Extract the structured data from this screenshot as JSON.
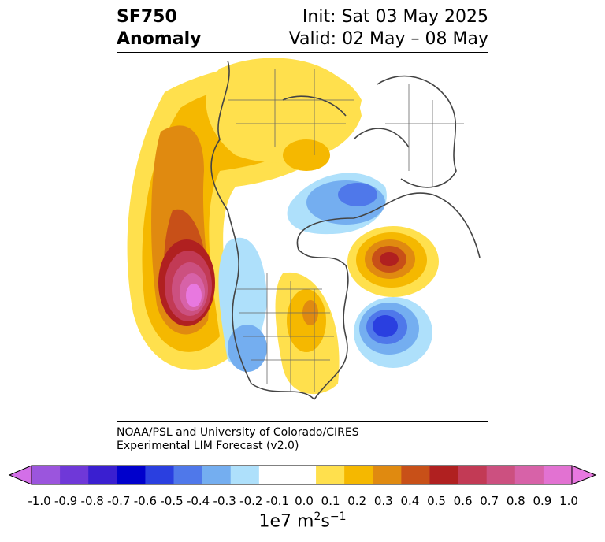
{
  "header": {
    "title_line1": "SF750",
    "title_line2": "Anomaly",
    "init": "Init: Sat 03 May 2025",
    "valid": "Valid: 02 May – 08 May"
  },
  "credit": {
    "line1": "NOAA/PSL and University of Colorado/CIRES",
    "line2": "Experimental LIM Forecast (v2.0)"
  },
  "colorbar": {
    "ticks": [
      "-1.0",
      "-0.9",
      "-0.8",
      "-0.7",
      "-0.6",
      "-0.5",
      "-0.4",
      "-0.3",
      "-0.2",
      "-0.1",
      "0.0",
      "0.1",
      "0.2",
      "0.3",
      "0.4",
      "0.5",
      "0.6",
      "0.7",
      "0.8",
      "0.9",
      "1.0"
    ],
    "colors": [
      "#9b55dd",
      "#6f38d8",
      "#3a1fd0",
      "#0000cc",
      "#2a3fe0",
      "#4f78ea",
      "#74aef0",
      "#aee0fb",
      "#ffffff",
      "#ffffff",
      "#ffe04d",
      "#f5b800",
      "#e08a10",
      "#c85018",
      "#b02020",
      "#c23a55",
      "#cc5080",
      "#d762a8",
      "#e272d2"
    ],
    "end_low": "#d36fe8",
    "end_high": "#e878e0",
    "unit_base": "1e7 m",
    "unit_exp1": "2",
    "unit_mid": "s",
    "unit_exp2": "−1"
  }
}
